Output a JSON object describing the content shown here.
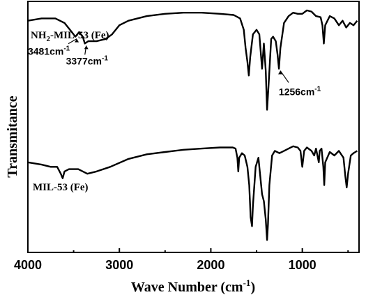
{
  "chart_data": {
    "type": "line",
    "title": "",
    "xlabel": "Wave Number (cm-1)",
    "ylabel": "Transmitance",
    "xlim": [
      4000,
      380
    ],
    "x_reversed": true,
    "x_ticks": [
      "4000",
      "3000",
      "2000",
      "1000"
    ],
    "x_tick_values": [
      4000,
      3000,
      2000,
      1000
    ],
    "y_ticks_shown": false,
    "series": [
      {
        "name": "NH2-MIL-53 (Fe)",
        "label_main": "NH",
        "label_sub": "2",
        "label_rest": "-MIL-53 (Fe)",
        "points": [
          [
            4000,
            0.84
          ],
          [
            3850,
            0.85
          ],
          [
            3700,
            0.85
          ],
          [
            3600,
            0.83
          ],
          [
            3520,
            0.79
          ],
          [
            3481,
            0.77
          ],
          [
            3440,
            0.79
          ],
          [
            3400,
            0.77
          ],
          [
            3377,
            0.74
          ],
          [
            3340,
            0.75
          ],
          [
            3250,
            0.75
          ],
          [
            3150,
            0.76
          ],
          [
            3080,
            0.78
          ],
          [
            3000,
            0.82
          ],
          [
            2900,
            0.84
          ],
          [
            2700,
            0.86
          ],
          [
            2500,
            0.87
          ],
          [
            2300,
            0.875
          ],
          [
            2100,
            0.875
          ],
          [
            1900,
            0.87
          ],
          [
            1750,
            0.865
          ],
          [
            1680,
            0.85
          ],
          [
            1640,
            0.8
          ],
          [
            1620,
            0.72
          ],
          [
            1600,
            0.66
          ],
          [
            1585,
            0.6
          ],
          [
            1570,
            0.68
          ],
          [
            1540,
            0.78
          ],
          [
            1500,
            0.8
          ],
          [
            1470,
            0.78
          ],
          [
            1440,
            0.63
          ],
          [
            1420,
            0.74
          ],
          [
            1400,
            0.62
          ],
          [
            1385,
            0.45
          ],
          [
            1370,
            0.55
          ],
          [
            1340,
            0.76
          ],
          [
            1320,
            0.77
          ],
          [
            1290,
            0.75
          ],
          [
            1270,
            0.69
          ],
          [
            1256,
            0.63
          ],
          [
            1240,
            0.72
          ],
          [
            1200,
            0.83
          ],
          [
            1150,
            0.86
          ],
          [
            1100,
            0.875
          ],
          [
            1050,
            0.87
          ],
          [
            1000,
            0.87
          ],
          [
            950,
            0.885
          ],
          [
            900,
            0.88
          ],
          [
            850,
            0.86
          ],
          [
            800,
            0.855
          ],
          [
            780,
            0.82
          ],
          [
            765,
            0.74
          ],
          [
            750,
            0.82
          ],
          [
            700,
            0.86
          ],
          [
            650,
            0.85
          ],
          [
            600,
            0.82
          ],
          [
            560,
            0.84
          ],
          [
            520,
            0.81
          ],
          [
            480,
            0.83
          ],
          [
            440,
            0.82
          ],
          [
            400,
            0.84
          ]
        ]
      },
      {
        "name": "MIL-53 (Fe)",
        "points": [
          [
            4000,
            0.22
          ],
          [
            3850,
            0.21
          ],
          [
            3750,
            0.2
          ],
          [
            3680,
            0.2
          ],
          [
            3640,
            0.17
          ],
          [
            3620,
            0.15
          ],
          [
            3600,
            0.18
          ],
          [
            3550,
            0.19
          ],
          [
            3450,
            0.19
          ],
          [
            3350,
            0.17
          ],
          [
            3250,
            0.18
          ],
          [
            3100,
            0.2
          ],
          [
            2900,
            0.235
          ],
          [
            2700,
            0.255
          ],
          [
            2500,
            0.265
          ],
          [
            2300,
            0.275
          ],
          [
            2100,
            0.28
          ],
          [
            1900,
            0.285
          ],
          [
            1760,
            0.285
          ],
          [
            1730,
            0.28
          ],
          [
            1710,
            0.24
          ],
          [
            1700,
            0.18
          ],
          [
            1690,
            0.24
          ],
          [
            1660,
            0.26
          ],
          [
            1630,
            0.25
          ],
          [
            1600,
            0.2
          ],
          [
            1580,
            0.12
          ],
          [
            1565,
            -0.02
          ],
          [
            1550,
            -0.06
          ],
          [
            1540,
            0.03
          ],
          [
            1510,
            0.2
          ],
          [
            1480,
            0.24
          ],
          [
            1460,
            0.16
          ],
          [
            1440,
            0.08
          ],
          [
            1420,
            0.05
          ],
          [
            1400,
            -0.03
          ],
          [
            1385,
            -0.12
          ],
          [
            1375,
            -0.05
          ],
          [
            1360,
            0.12
          ],
          [
            1330,
            0.25
          ],
          [
            1300,
            0.27
          ],
          [
            1250,
            0.26
          ],
          [
            1200,
            0.27
          ],
          [
            1150,
            0.28
          ],
          [
            1100,
            0.29
          ],
          [
            1050,
            0.285
          ],
          [
            1020,
            0.27
          ],
          [
            1000,
            0.2
          ],
          [
            980,
            0.27
          ],
          [
            950,
            0.285
          ],
          [
            900,
            0.27
          ],
          [
            870,
            0.25
          ],
          [
            850,
            0.28
          ],
          [
            820,
            0.22
          ],
          [
            810,
            0.27
          ],
          [
            790,
            0.28
          ],
          [
            770,
            0.2
          ],
          [
            760,
            0.12
          ],
          [
            750,
            0.22
          ],
          [
            700,
            0.265
          ],
          [
            650,
            0.25
          ],
          [
            600,
            0.27
          ],
          [
            550,
            0.24
          ],
          [
            530,
            0.16
          ],
          [
            515,
            0.11
          ],
          [
            500,
            0.17
          ],
          [
            470,
            0.25
          ],
          [
            440,
            0.26
          ],
          [
            400,
            0.27
          ]
        ]
      }
    ],
    "annotations": [
      {
        "text": "3481cm",
        "sup": "-1",
        "x": 3481,
        "y": 0.77
      },
      {
        "text": "3377cm",
        "sup": "-1",
        "x": 3377,
        "y": 0.74
      },
      {
        "text": "1256cm",
        "sup": "-1",
        "x": 1256,
        "y": 0.63
      }
    ],
    "grid": false,
    "legend": "labels next to each curve"
  },
  "axis_title_parts": {
    "x_main": "Wave Number (cm",
    "x_sup": "-1",
    "x_end": ")",
    "y": "Transmitance"
  }
}
